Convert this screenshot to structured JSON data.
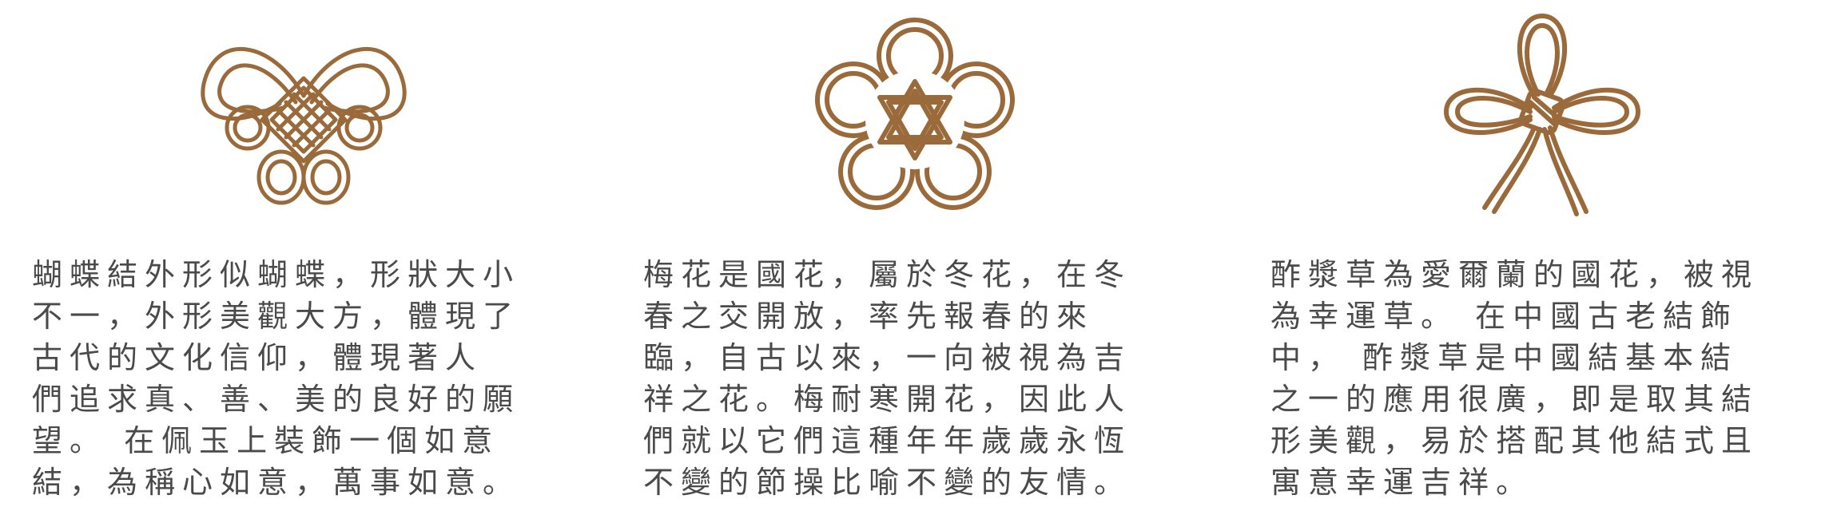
{
  "colors": {
    "knot": "#9a6a3a",
    "text": "#4a4a4a",
    "background": "#ffffff"
  },
  "cards": [
    {
      "icon": "butterfly-knot-icon",
      "text": "蝴蝶結外形似蝴蝶，形狀大小\n不一，外形美觀大方，體現了\n古代的文化信仰，體現著人\n們追求真、善、美的良好的願\n望。 在佩玉上裝飾一個如意\n結，為稱心如意，萬事如意。"
    },
    {
      "icon": "plum-blossom-knot-icon",
      "text": "梅花是國花，屬於冬花，在冬\n春之交開放，率先報春的來\n臨，自古以來，一向被視為吉\n祥之花。梅耐寒開花，因此人\n們就以它們這種年年歲歲永恆\n不變的節操比喻不變的友情。"
    },
    {
      "icon": "clover-knot-icon",
      "text": "酢漿草為愛爾蘭的國花，被視\n為幸運草。 在中國古老結飾\n中， 酢漿草是中國結基本結\n之一的應用很廣，即是取其結\n形美觀，易於搭配其他結式且\n寓意幸運吉祥。"
    }
  ]
}
